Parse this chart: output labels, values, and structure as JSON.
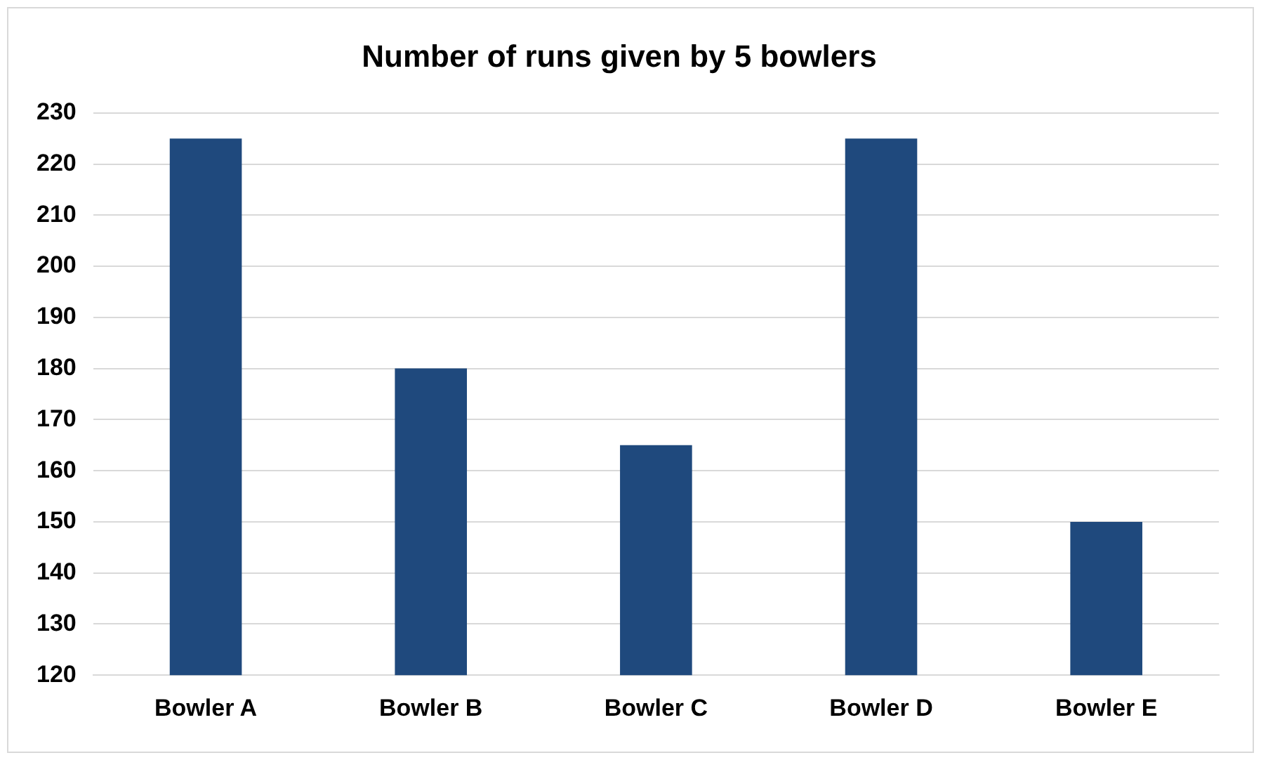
{
  "chart_data": {
    "type": "bar",
    "title": "Number of runs given by 5 bowlers",
    "categories": [
      "Bowler A",
      "Bowler B",
      "Bowler C",
      "Bowler D",
      "Bowler E"
    ],
    "values": [
      225,
      180,
      165,
      225,
      150
    ],
    "color": "#1f497d",
    "ylim": [
      120,
      230
    ],
    "yticks": [
      120,
      130,
      140,
      150,
      160,
      170,
      180,
      190,
      200,
      210,
      220,
      230
    ],
    "grid": "y",
    "legend": false
  }
}
